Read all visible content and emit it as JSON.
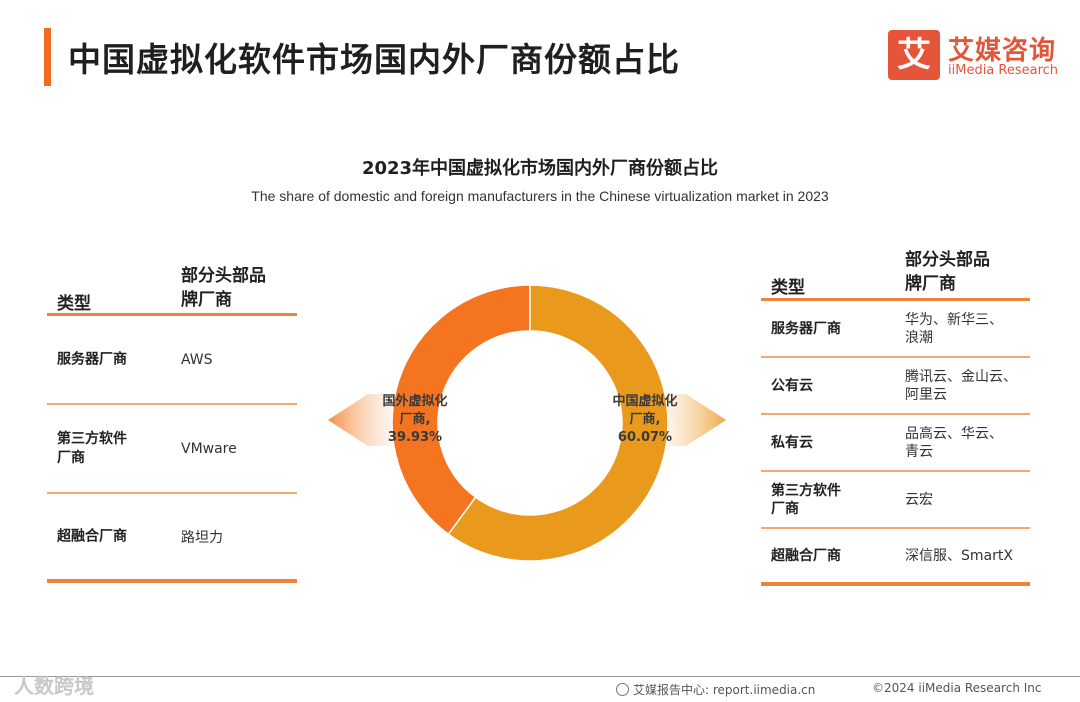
{
  "header": {
    "title": "中国虚拟化软件市场国内外厂商份额占比",
    "logo_mark": "艾",
    "logo_cn": "艾媒咨询",
    "logo_en": "iiMedia Research"
  },
  "chart_data": {
    "type": "pie",
    "variant": "donut",
    "title": "2023年中国虚拟化市场国内外厂商份额占比",
    "subtitle": "The share of domestic and foreign manufacturers in the Chinese virtualization market in 2023",
    "categories": [
      "国外虚拟化厂商",
      "中国虚拟化厂商"
    ],
    "values": [
      39.93,
      60.07
    ],
    "unit": "%",
    "slice_labels": [
      [
        "国外虚拟化",
        "厂商,",
        "39.93%"
      ],
      [
        "中国虚拟化",
        "厂商,",
        "60.07%"
      ]
    ],
    "colors": [
      "#f57420",
      "#e99a1d"
    ]
  },
  "left_table": {
    "headers": [
      "类型",
      "部分头部品",
      "牌厂商"
    ],
    "rows": [
      {
        "type": [
          "服务器厂商"
        ],
        "brands": "AWS"
      },
      {
        "type": [
          "第三方软件",
          "厂商"
        ],
        "brands": "VMware"
      },
      {
        "type": [
          "超融合厂商"
        ],
        "brands": "路坦力"
      }
    ]
  },
  "right_table": {
    "headers": [
      "类型",
      "部分头部品",
      "牌厂商"
    ],
    "rows": [
      {
        "type": [
          "服务器厂商"
        ],
        "brands": [
          "华为、新华三、",
          "浪潮"
        ]
      },
      {
        "type": [
          "公有云"
        ],
        "brands": [
          "腾讯云、金山云、",
          "阿里云"
        ]
      },
      {
        "type": [
          "私有云"
        ],
        "brands": [
          "品高云、华云、",
          "青云"
        ]
      },
      {
        "type": [
          "第三方软件",
          "厂商"
        ],
        "brands": [
          "云宏"
        ]
      },
      {
        "type": [
          "超融合厂商"
        ],
        "brands": [
          "深信服、SmartX"
        ]
      }
    ]
  },
  "footer": {
    "watermark": "人数跨境",
    "source": "艾媒报告中心: report.iimedia.cn",
    "copyright": "©2024  iiMedia Research  Inc"
  }
}
